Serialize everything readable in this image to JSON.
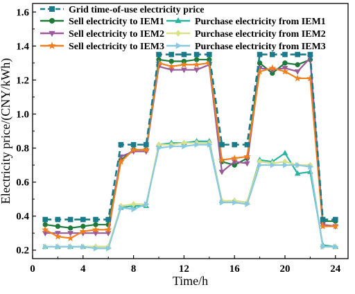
{
  "chart_data": {
    "type": "line",
    "xlabel": "Time/h",
    "ylabel": "Electricity price/(CNY/kWh)",
    "xlim": [
      0,
      25
    ],
    "ylim": [
      0.15,
      1.65
    ],
    "xticks": [
      "0",
      "4",
      "8",
      "12",
      "16",
      "20",
      "24"
    ],
    "yticks": [
      "0.2",
      "0.4",
      "0.6",
      "0.8",
      "1.0",
      "1.2",
      "1.4",
      "1.6"
    ],
    "legend_position": "top-left",
    "legend_columns": 2,
    "x": [
      1,
      2,
      3,
      4,
      5,
      6,
      7,
      8,
      9,
      10,
      11,
      12,
      13,
      14,
      15,
      16,
      17,
      18,
      19,
      20,
      21,
      22,
      23,
      24
    ],
    "series": [
      {
        "name": "Grid time-of-use electricity price",
        "color": "#1a7a8a",
        "marker": "square",
        "dashed": true,
        "values": [
          0.38,
          0.38,
          0.38,
          0.38,
          0.38,
          0.38,
          0.82,
          0.82,
          0.82,
          1.35,
          1.35,
          1.35,
          1.35,
          1.35,
          0.82,
          0.82,
          0.82,
          1.35,
          1.35,
          1.35,
          1.35,
          1.35,
          0.38,
          0.38
        ]
      },
      {
        "name": "Sell electricity to IEM1",
        "color": "#1f7a3a",
        "marker": "circle",
        "values": [
          0.35,
          0.34,
          0.33,
          0.34,
          0.35,
          0.35,
          0.73,
          0.79,
          0.79,
          1.32,
          1.31,
          1.31,
          1.32,
          1.32,
          0.72,
          0.7,
          0.74,
          1.3,
          1.24,
          1.3,
          1.29,
          1.32,
          0.37,
          0.37
        ]
      },
      {
        "name": "Purchase electricity from IEM1",
        "color": "#2bb3a0",
        "marker": "triangle-up",
        "values": [
          0.22,
          0.22,
          0.22,
          0.22,
          0.22,
          0.22,
          0.45,
          0.46,
          0.46,
          0.82,
          0.83,
          0.83,
          0.84,
          0.84,
          0.49,
          0.49,
          0.48,
          0.73,
          0.72,
          0.77,
          0.65,
          0.66,
          0.23,
          0.22
        ]
      },
      {
        "name": "Sell electricity to IEM2",
        "color": "#9a5a9a",
        "marker": "triangle-down",
        "values": [
          0.3,
          0.3,
          0.3,
          0.3,
          0.3,
          0.3,
          0.75,
          0.78,
          0.78,
          1.28,
          1.26,
          1.26,
          1.26,
          1.29,
          0.66,
          0.72,
          0.71,
          1.27,
          1.26,
          1.27,
          1.25,
          1.33,
          0.35,
          0.34
        ]
      },
      {
        "name": "Purchase electricity from IEM2",
        "color": "#d8e08a",
        "marker": "diamond",
        "values": [
          0.22,
          0.22,
          0.22,
          0.22,
          0.22,
          0.22,
          0.46,
          0.47,
          0.47,
          0.82,
          0.82,
          0.83,
          0.83,
          0.83,
          0.49,
          0.49,
          0.48,
          0.72,
          0.71,
          0.72,
          0.7,
          0.7,
          0.22,
          0.22
        ]
      },
      {
        "name": "Sell electricity to IEM3",
        "color": "#f07f1e",
        "marker": "star",
        "values": [
          0.32,
          0.28,
          0.27,
          0.31,
          0.32,
          0.32,
          0.72,
          0.79,
          0.79,
          1.3,
          1.28,
          1.29,
          1.29,
          1.3,
          0.73,
          0.74,
          0.75,
          1.25,
          1.27,
          1.25,
          1.21,
          1.21,
          0.34,
          0.34
        ]
      },
      {
        "name": "Purchase electricity from IEM3",
        "color": "#88c8e0",
        "marker": "triangle-right",
        "values": [
          0.22,
          0.22,
          0.22,
          0.22,
          0.21,
          0.21,
          0.45,
          0.44,
          0.47,
          0.8,
          0.81,
          0.81,
          0.82,
          0.82,
          0.48,
          0.48,
          0.47,
          0.7,
          0.7,
          0.7,
          0.7,
          0.69,
          0.22,
          0.22
        ]
      }
    ]
  }
}
